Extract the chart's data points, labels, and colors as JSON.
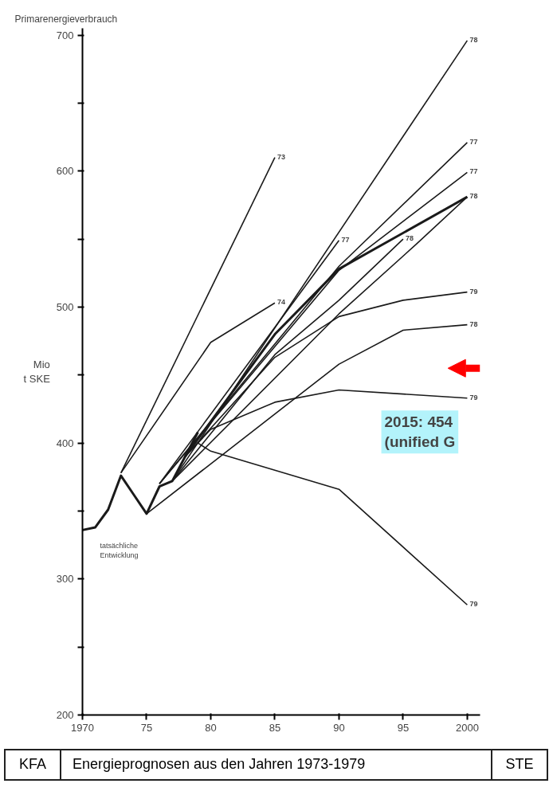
{
  "chart_data": {
    "type": "line",
    "title": "Energieprognosen aus den Jahren 1973-1979",
    "subtitle": "Primarenergieverbrauch",
    "ylabel": "Mio\nt SKE",
    "xlim": [
      1970,
      2001
    ],
    "ylim": [
      200,
      705
    ],
    "xticks": [
      {
        "value": 1970,
        "label": "1970"
      },
      {
        "value": 1975,
        "label": "75"
      },
      {
        "value": 1980,
        "label": "80"
      },
      {
        "value": 1985,
        "label": "85"
      },
      {
        "value": 1990,
        "label": "90"
      },
      {
        "value": 1995,
        "label": "95"
      },
      {
        "value": 2000,
        "label": "2000"
      }
    ],
    "yticks": [
      200,
      {
        "value": 250,
        "label": null
      },
      300,
      {
        "value": 350,
        "label": null
      },
      400,
      {
        "value": 450,
        "label": null
      },
      500,
      {
        "value": 550,
        "label": null
      },
      600,
      {
        "value": 650,
        "label": null
      },
      700
    ],
    "grid": false,
    "marker": "none",
    "line_style": "solid",
    "series": [
      {
        "name": "tatsächliche\nEntwicklung",
        "color": "#1a1a1a",
        "x": [
          1970,
          1971,
          1972,
          1973,
          1974,
          1975,
          1976,
          1977,
          1978,
          1979
        ],
        "values": [
          336,
          338,
          351,
          376,
          362,
          348,
          368,
          372,
          390,
          408
        ]
      },
      {
        "name": "73",
        "color": "#1a1a1a",
        "x": [
          1973,
          1985
        ],
        "values": [
          378,
          610
        ]
      },
      {
        "name": "74",
        "color": "#1a1a1a",
        "x": [
          1973,
          1980,
          1985
        ],
        "values": [
          378,
          474,
          503
        ]
      },
      {
        "name": "77",
        "color": "#1a1a1a",
        "x": [
          1976,
          1990
        ],
        "values": [
          370,
          549
        ]
      },
      {
        "name": "78",
        "color": "#1a1a1a",
        "x": [
          1977,
          2000
        ],
        "values": [
          372,
          696
        ]
      },
      {
        "name": "77",
        "color": "#1a1a1a",
        "x": [
          1976,
          1990,
          2000
        ],
        "values": [
          370,
          530,
          621
        ]
      },
      {
        "name": "77",
        "color": "#1a1a1a",
        "x": [
          1976,
          1990,
          2000
        ],
        "values": [
          370,
          527,
          599
        ]
      },
      {
        "name": null,
        "color": "#1a1a1a",
        "x": [
          1978,
          1985,
          1990,
          2000
        ],
        "values": [
          390,
          480,
          528,
          581
        ]
      },
      {
        "name": "78",
        "color": "#1a1a1a",
        "x": [
          1977,
          1985,
          1990,
          1995
        ],
        "values": [
          372,
          465,
          505,
          550
        ]
      },
      {
        "name": "78",
        "color": "#1a1a1a",
        "x": [
          1977,
          1990,
          1996,
          2000
        ],
        "values": [
          372,
          495,
          546,
          581
        ]
      },
      {
        "name": "79",
        "color": "#1a1a1a",
        "x": [
          1978,
          1985,
          1990,
          1995,
          2000
        ],
        "values": [
          390,
          463,
          493,
          505,
          511
        ]
      },
      {
        "name": "78",
        "color": "#1a1a1a",
        "x": [
          1975,
          1990,
          1995,
          2000
        ],
        "values": [
          348,
          458,
          483,
          487
        ]
      },
      {
        "name": "79",
        "color": "#1a1a1a",
        "x": [
          1978,
          1980,
          1985,
          1990,
          2000
        ],
        "values": [
          390,
          410,
          430,
          439,
          433
        ]
      },
      {
        "name": "79",
        "color": "#1a1a1a",
        "x": [
          1979,
          1980,
          1990,
          2000
        ],
        "values": [
          400,
          394,
          366,
          281
        ]
      }
    ],
    "annotations": [
      "2015: 454\n(unified G",
      "KFA",
      "STE"
    ]
  }
}
